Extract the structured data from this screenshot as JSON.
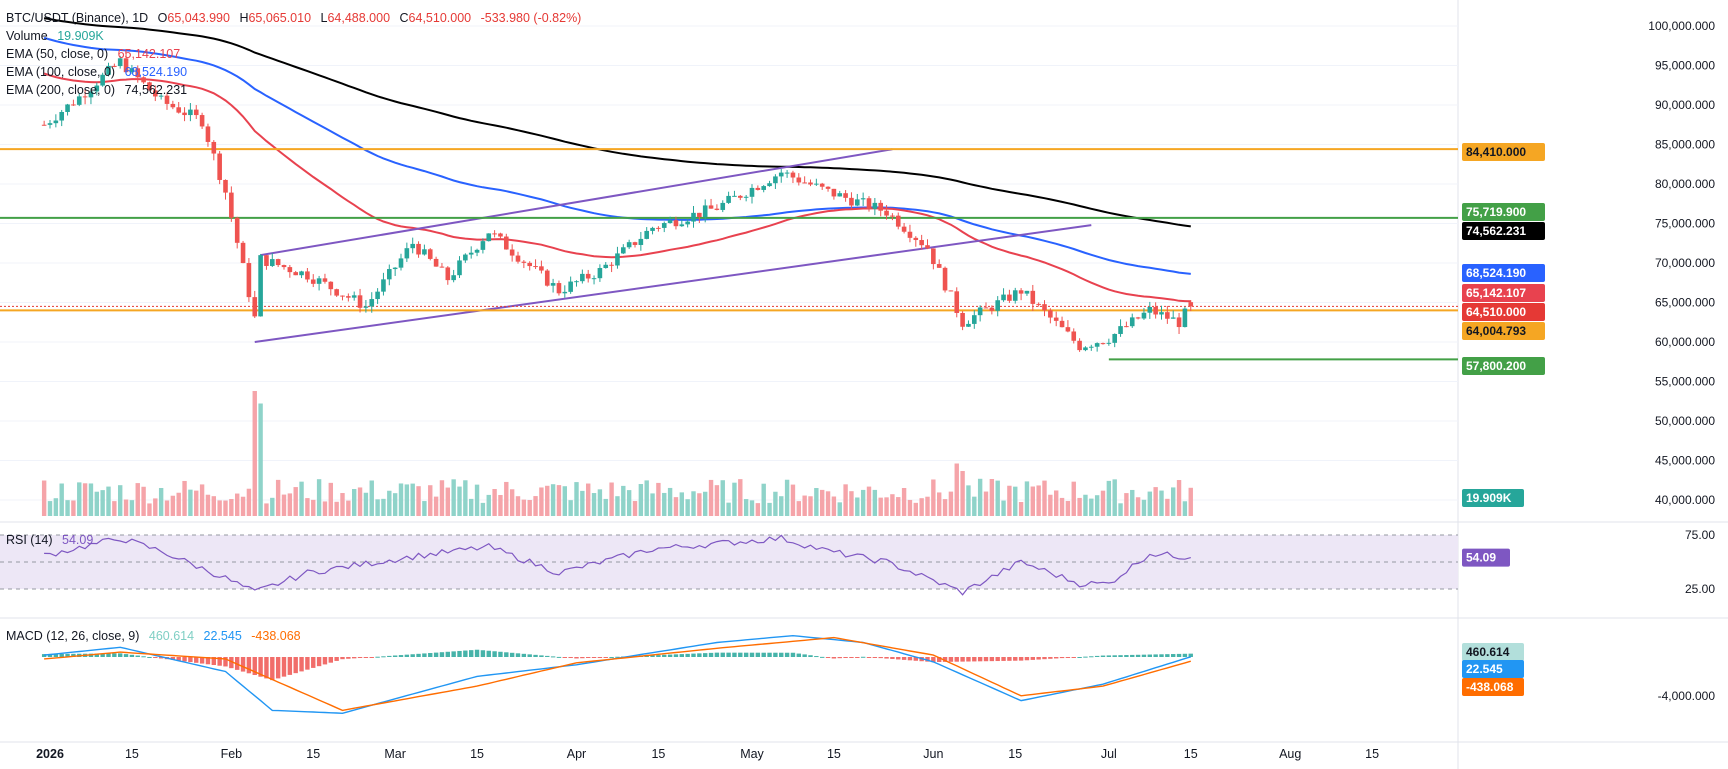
{
  "header": {
    "symbol": "BTC/USDT (Binance), 1D",
    "ohlc": {
      "open_label": "O",
      "open": "65,043.990",
      "high_label": "H",
      "high": "65,065.010",
      "low_label": "L",
      "low": "64,488.000",
      "close_label": "C",
      "close": "64,510.000",
      "change": "-533.980 (-0.82%)"
    },
    "volume": {
      "label": "Volume",
      "value": "19.909K"
    },
    "ema50": {
      "label": "EMA (50, close, 0)",
      "value": "65,142.107"
    },
    "ema100": {
      "label": "EMA (100, close, 0)",
      "value": "68,524.190"
    },
    "ema200": {
      "label": "EMA (200, close, 0)",
      "value": "74,562.231"
    }
  },
  "colors": {
    "up": "#26a69a",
    "down": "#ef5350",
    "up_vol": "#8fd3c9",
    "down_vol": "#f5a4a9",
    "ema50": "#e8424f",
    "ema100": "#2962ff",
    "ema200": "#000000",
    "channel": "#7e57c2",
    "level_orange": "#f5a623",
    "level_green": "#43a047",
    "rsi_line": "#7e57c2",
    "rsi_band": "#ede7f6",
    "macd_line": "#2196f3",
    "signal_line": "#ff6d00",
    "hist_up": "#26a69a",
    "hist_down": "#ef5350"
  },
  "chart_data": {
    "type": "candlestick",
    "timeframe": "1D",
    "y_axis_ticks": [
      "100,000.000",
      "95,000.000",
      "90,000.000",
      "85,000.000",
      "80,000.000",
      "75,000.000",
      "70,000.000",
      "65,000.000",
      "60,000.000",
      "55,000.000",
      "50,000.000",
      "45,000.000",
      "40,000.000"
    ],
    "x_axis_ticks": [
      "2026",
      "15",
      "Feb",
      "15",
      "Mar",
      "15",
      "Apr",
      "15",
      "May",
      "15",
      "Jun",
      "15",
      "Jul",
      "15",
      "Aug",
      "15"
    ],
    "price_path_key_points": [
      {
        "date": "2025-12-31",
        "close": 87500
      },
      {
        "date": "2026-01-06",
        "close": 91000
      },
      {
        "date": "2026-01-13",
        "close": 95500
      },
      {
        "date": "2026-01-20",
        "close": 90500
      },
      {
        "date": "2026-01-27",
        "close": 88000
      },
      {
        "date": "2026-01-31",
        "close": 79000
      },
      {
        "date": "2026-02-05",
        "close": 63000
      },
      {
        "date": "2026-02-06",
        "close": 70500
      },
      {
        "date": "2026-02-14",
        "close": 68500
      },
      {
        "date": "2026-02-24",
        "close": 64500
      },
      {
        "date": "2026-03-04",
        "close": 72500
      },
      {
        "date": "2026-03-10",
        "close": 68000
      },
      {
        "date": "2026-03-17",
        "close": 74000
      },
      {
        "date": "2026-03-29",
        "close": 66500
      },
      {
        "date": "2026-04-05",
        "close": 69000
      },
      {
        "date": "2026-04-14",
        "close": 74500
      },
      {
        "date": "2026-04-25",
        "close": 77000
      },
      {
        "date": "2026-05-06",
        "close": 81500
      },
      {
        "date": "2026-05-14",
        "close": 79000
      },
      {
        "date": "2026-05-24",
        "close": 76500
      },
      {
        "date": "2026-05-31",
        "close": 72000
      },
      {
        "date": "2026-06-06",
        "close": 62500
      },
      {
        "date": "2026-06-16",
        "close": 66500
      },
      {
        "date": "2026-06-26",
        "close": 59500
      },
      {
        "date": "2026-07-01",
        "close": 60500
      },
      {
        "date": "2026-07-08",
        "close": 64000
      },
      {
        "date": "2026-07-13",
        "close": 62500
      },
      {
        "date": "2026-07-15",
        "close": 64510
      }
    ],
    "volume_spikes": [
      {
        "date": "2026-02-05",
        "volume_rel": 1.0
      },
      {
        "date": "2026-02-06",
        "volume_rel": 0.9
      },
      {
        "date": "2026-06-05",
        "volume_rel": 0.42
      },
      {
        "date": "2026-06-06",
        "volume_rel": 0.36
      }
    ],
    "ema_endpoints": {
      "ema50": 65142.107,
      "ema100": 68524.19,
      "ema200": 74562.231
    },
    "channel": {
      "upper": [
        {
          "date": "2026-02-06",
          "price": 71000
        },
        {
          "date": "2026-05-25",
          "price": 84400
        }
      ],
      "lower": [
        {
          "date": "2026-02-05",
          "price": 60000
        },
        {
          "date": "2026-06-28",
          "price": 74800
        }
      ]
    },
    "horizontal_levels": [
      {
        "price": 84410.0,
        "color": "orange"
      },
      {
        "price": 75719.9,
        "color": "green"
      },
      {
        "price": 64004.793,
        "color": "orange"
      },
      {
        "price": 57800.2,
        "color": "green",
        "from": "2026-07-01"
      }
    ],
    "price_tags": [
      {
        "text": "84,410.000",
        "price": 84410.0,
        "bg": "#f5a623",
        "fg": "#131722"
      },
      {
        "text": "75,719.900",
        "price": 75719.9,
        "bg": "#43a047",
        "fg": "#ffffff"
      },
      {
        "text": "74,562.231",
        "price": 74562.231,
        "bg": "#000000",
        "fg": "#ffffff"
      },
      {
        "text": "68,524.190",
        "price": 68524.19,
        "bg": "#2962ff",
        "fg": "#ffffff"
      },
      {
        "text": "65,142.107",
        "price": 65142.107,
        "bg": "#e8424f",
        "fg": "#ffffff"
      },
      {
        "text": "64,510.000",
        "price": 64510.0,
        "bg": "#e53935",
        "fg": "#ffffff"
      },
      {
        "text": "64,004.793",
        "price": 64004.793,
        "bg": "#f5a623",
        "fg": "#131722"
      },
      {
        "text": "57,800.200",
        "price": 57800.2,
        "bg": "#43a047",
        "fg": "#ffffff"
      }
    ],
    "volume_tag": {
      "text": "19.909K",
      "bg": "#26a69a",
      "fg": "#ffffff"
    },
    "rsi": {
      "label": "RSI (14)",
      "value": "54.09",
      "ticks": [
        "75.00",
        "25.00"
      ],
      "key_points": [
        {
          "date": "2025-12-31",
          "value": 56
        },
        {
          "date": "2026-01-13",
          "value": 72
        },
        {
          "date": "2026-01-20",
          "value": 60
        },
        {
          "date": "2026-01-31",
          "value": 35
        },
        {
          "date": "2026-02-05",
          "value": 22
        },
        {
          "date": "2026-02-14",
          "value": 40
        },
        {
          "date": "2026-03-04",
          "value": 55
        },
        {
          "date": "2026-03-17",
          "value": 64
        },
        {
          "date": "2026-03-29",
          "value": 40
        },
        {
          "date": "2026-04-14",
          "value": 62
        },
        {
          "date": "2026-05-06",
          "value": 72
        },
        {
          "date": "2026-05-14",
          "value": 60
        },
        {
          "date": "2026-05-24",
          "value": 50
        },
        {
          "date": "2026-06-06",
          "value": 22
        },
        {
          "date": "2026-06-16",
          "value": 50
        },
        {
          "date": "2026-06-26",
          "value": 30
        },
        {
          "date": "2026-07-01",
          "value": 30
        },
        {
          "date": "2026-07-08",
          "value": 58
        },
        {
          "date": "2026-07-15",
          "value": 54.09
        }
      ]
    },
    "macd": {
      "label": "MACD (12, 26, close, 9)",
      "values": [
        "460.614",
        "22.545",
        "-438.068"
      ],
      "ticks": [
        "-4,000.000"
      ],
      "key_points_macd": [
        {
          "date": "2025-12-31",
          "value": 200
        },
        {
          "date": "2026-01-13",
          "value": 1000
        },
        {
          "date": "2026-01-31",
          "value": -1500
        },
        {
          "date": "2026-02-08",
          "value": -5500
        },
        {
          "date": "2026-02-20",
          "value": -5800
        },
        {
          "date": "2026-03-15",
          "value": -2000
        },
        {
          "date": "2026-04-01",
          "value": -800
        },
        {
          "date": "2026-04-25",
          "value": 1500
        },
        {
          "date": "2026-05-08",
          "value": 2200
        },
        {
          "date": "2026-05-20",
          "value": 1500
        },
        {
          "date": "2026-06-01",
          "value": -500
        },
        {
          "date": "2026-06-16",
          "value": -4500
        },
        {
          "date": "2026-06-30",
          "value": -2800
        },
        {
          "date": "2026-07-15",
          "value": 22.545
        }
      ],
      "key_points_signal": [
        {
          "date": "2025-12-31",
          "value": -200
        },
        {
          "date": "2026-01-13",
          "value": 500
        },
        {
          "date": "2026-01-31",
          "value": -200
        },
        {
          "date": "2026-02-20",
          "value": -5500
        },
        {
          "date": "2026-03-15",
          "value": -3000
        },
        {
          "date": "2026-04-01",
          "value": -600
        },
        {
          "date": "2026-04-25",
          "value": 900
        },
        {
          "date": "2026-05-15",
          "value": 2000
        },
        {
          "date": "2026-06-01",
          "value": 200
        },
        {
          "date": "2026-06-16",
          "value": -4000
        },
        {
          "date": "2026-06-30",
          "value": -3000
        },
        {
          "date": "2026-07-15",
          "value": -438.068
        }
      ],
      "tags": [
        {
          "text": "460.614",
          "bg": "#b2dfdb",
          "fg": "#131722"
        },
        {
          "text": "22.545",
          "bg": "#2196f3",
          "fg": "#ffffff"
        },
        {
          "text": "-438.068",
          "bg": "#ff6d00",
          "fg": "#ffffff"
        }
      ]
    }
  }
}
